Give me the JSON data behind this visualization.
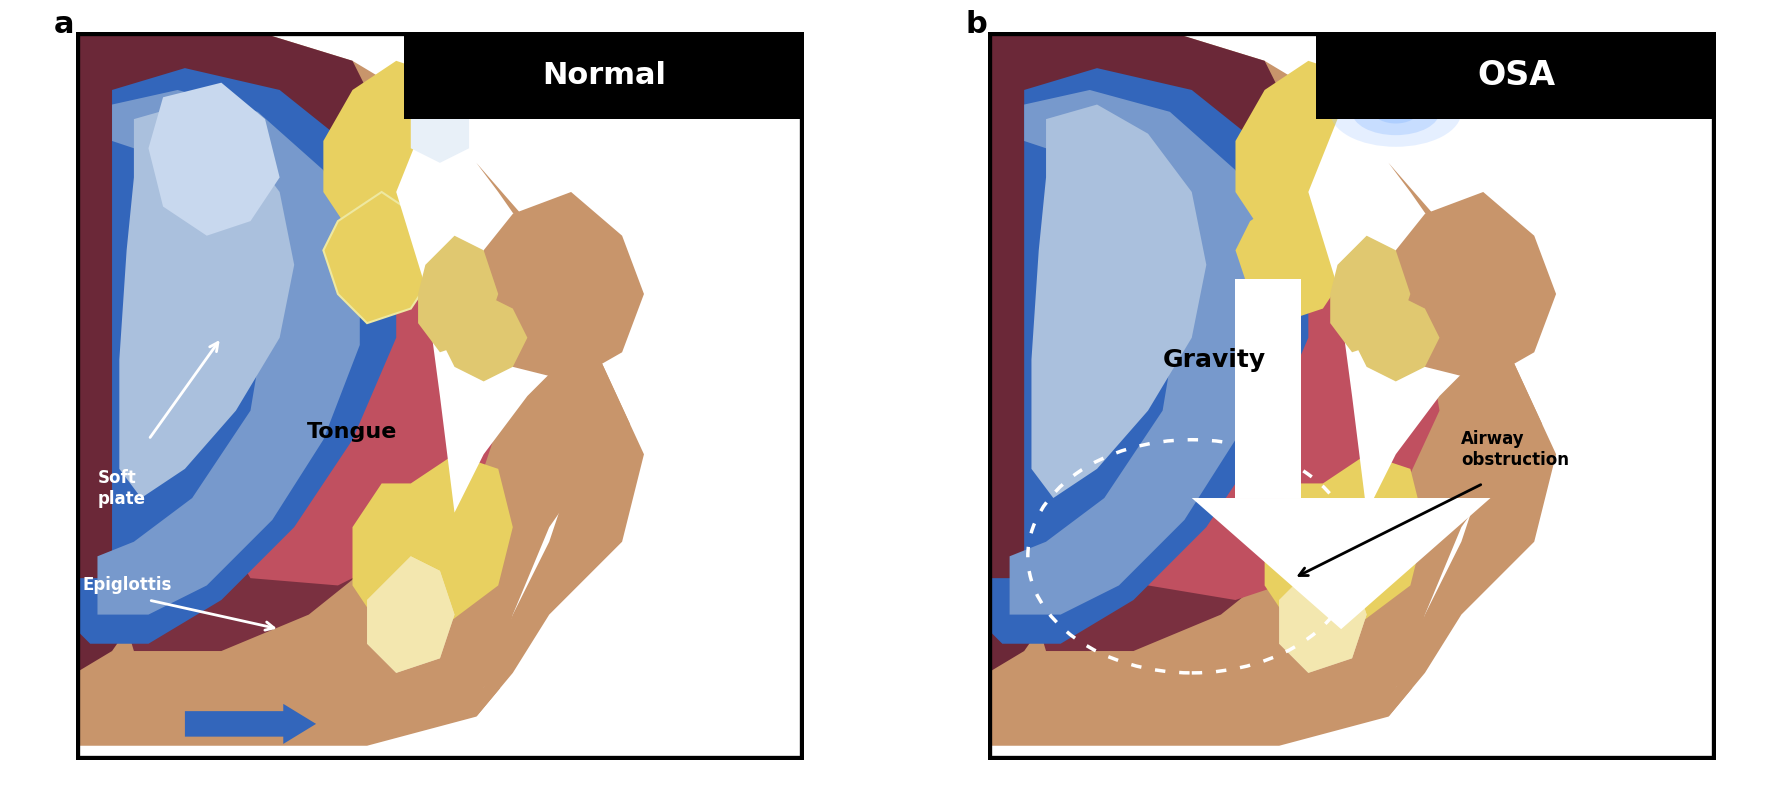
{
  "panel_a_label": "a",
  "panel_b_label": "b",
  "title_a": "Normal",
  "title_b": "OSA",
  "label_tongue": "Tongue",
  "label_soft_plate": "Soft\nplate",
  "label_epiglottis": "Epiglottis",
  "label_gravity": "Gravity",
  "label_airway_obs": "Airway\nobstruction",
  "C_skin": "#C8956B",
  "C_dark_maroon": "#6B2838",
  "C_mid_maroon": "#8B3545",
  "C_tongue": "#C05060",
  "C_soft_palate": "#E8B8C0",
  "C_blue_dark": "#1A4A9A",
  "C_blue_mid": "#3366BB",
  "C_blue_light": "#7799CC",
  "C_blue_pale": "#AAC0DD",
  "C_yellow": "#E8D060",
  "C_yellow2": "#D4B830",
  "C_white": "#FFFFFF",
  "C_black": "#000000",
  "C_throat_dark": "#7A3040"
}
